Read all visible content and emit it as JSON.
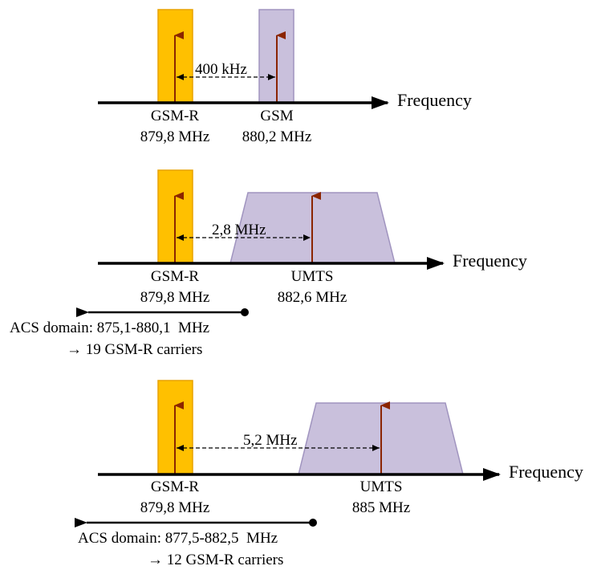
{
  "colors": {
    "gsmr_fill": "#FFC000",
    "gsmr_stroke": "#E8A200",
    "other_fill": "#C9C0DC",
    "other_stroke": "#A094BF",
    "carrier_arrow": "#8B2500",
    "axis": "#000000"
  },
  "panel1": {
    "axis_label": "Frequency",
    "gsmr_name": "GSM-R",
    "gsmr_freq": "879,8 MHz",
    "other_name": "GSM",
    "other_freq": "880,2 MHz",
    "spacing_label": "400 kHz"
  },
  "panel2": {
    "axis_label": "Frequency",
    "gsmr_name": "GSM-R",
    "gsmr_freq": "879,8 MHz",
    "other_name": "UMTS",
    "other_freq": "882,6 MHz",
    "spacing_label": "2,8 MHz",
    "acs_domain": "ACS domain: 875,1-880,1  MHz",
    "acs_result": "→ 19 GSM-R carriers"
  },
  "panel3": {
    "axis_label": "Frequency",
    "gsmr_name": "GSM-R",
    "gsmr_freq": "879,8 MHz",
    "other_name": "UMTS",
    "other_freq": "885 MHz",
    "spacing_label": "5,2 MHz",
    "acs_domain": "ACS domain: 877,5-882,5  MHz",
    "acs_result": "→ 12 GSM-R carriers"
  }
}
